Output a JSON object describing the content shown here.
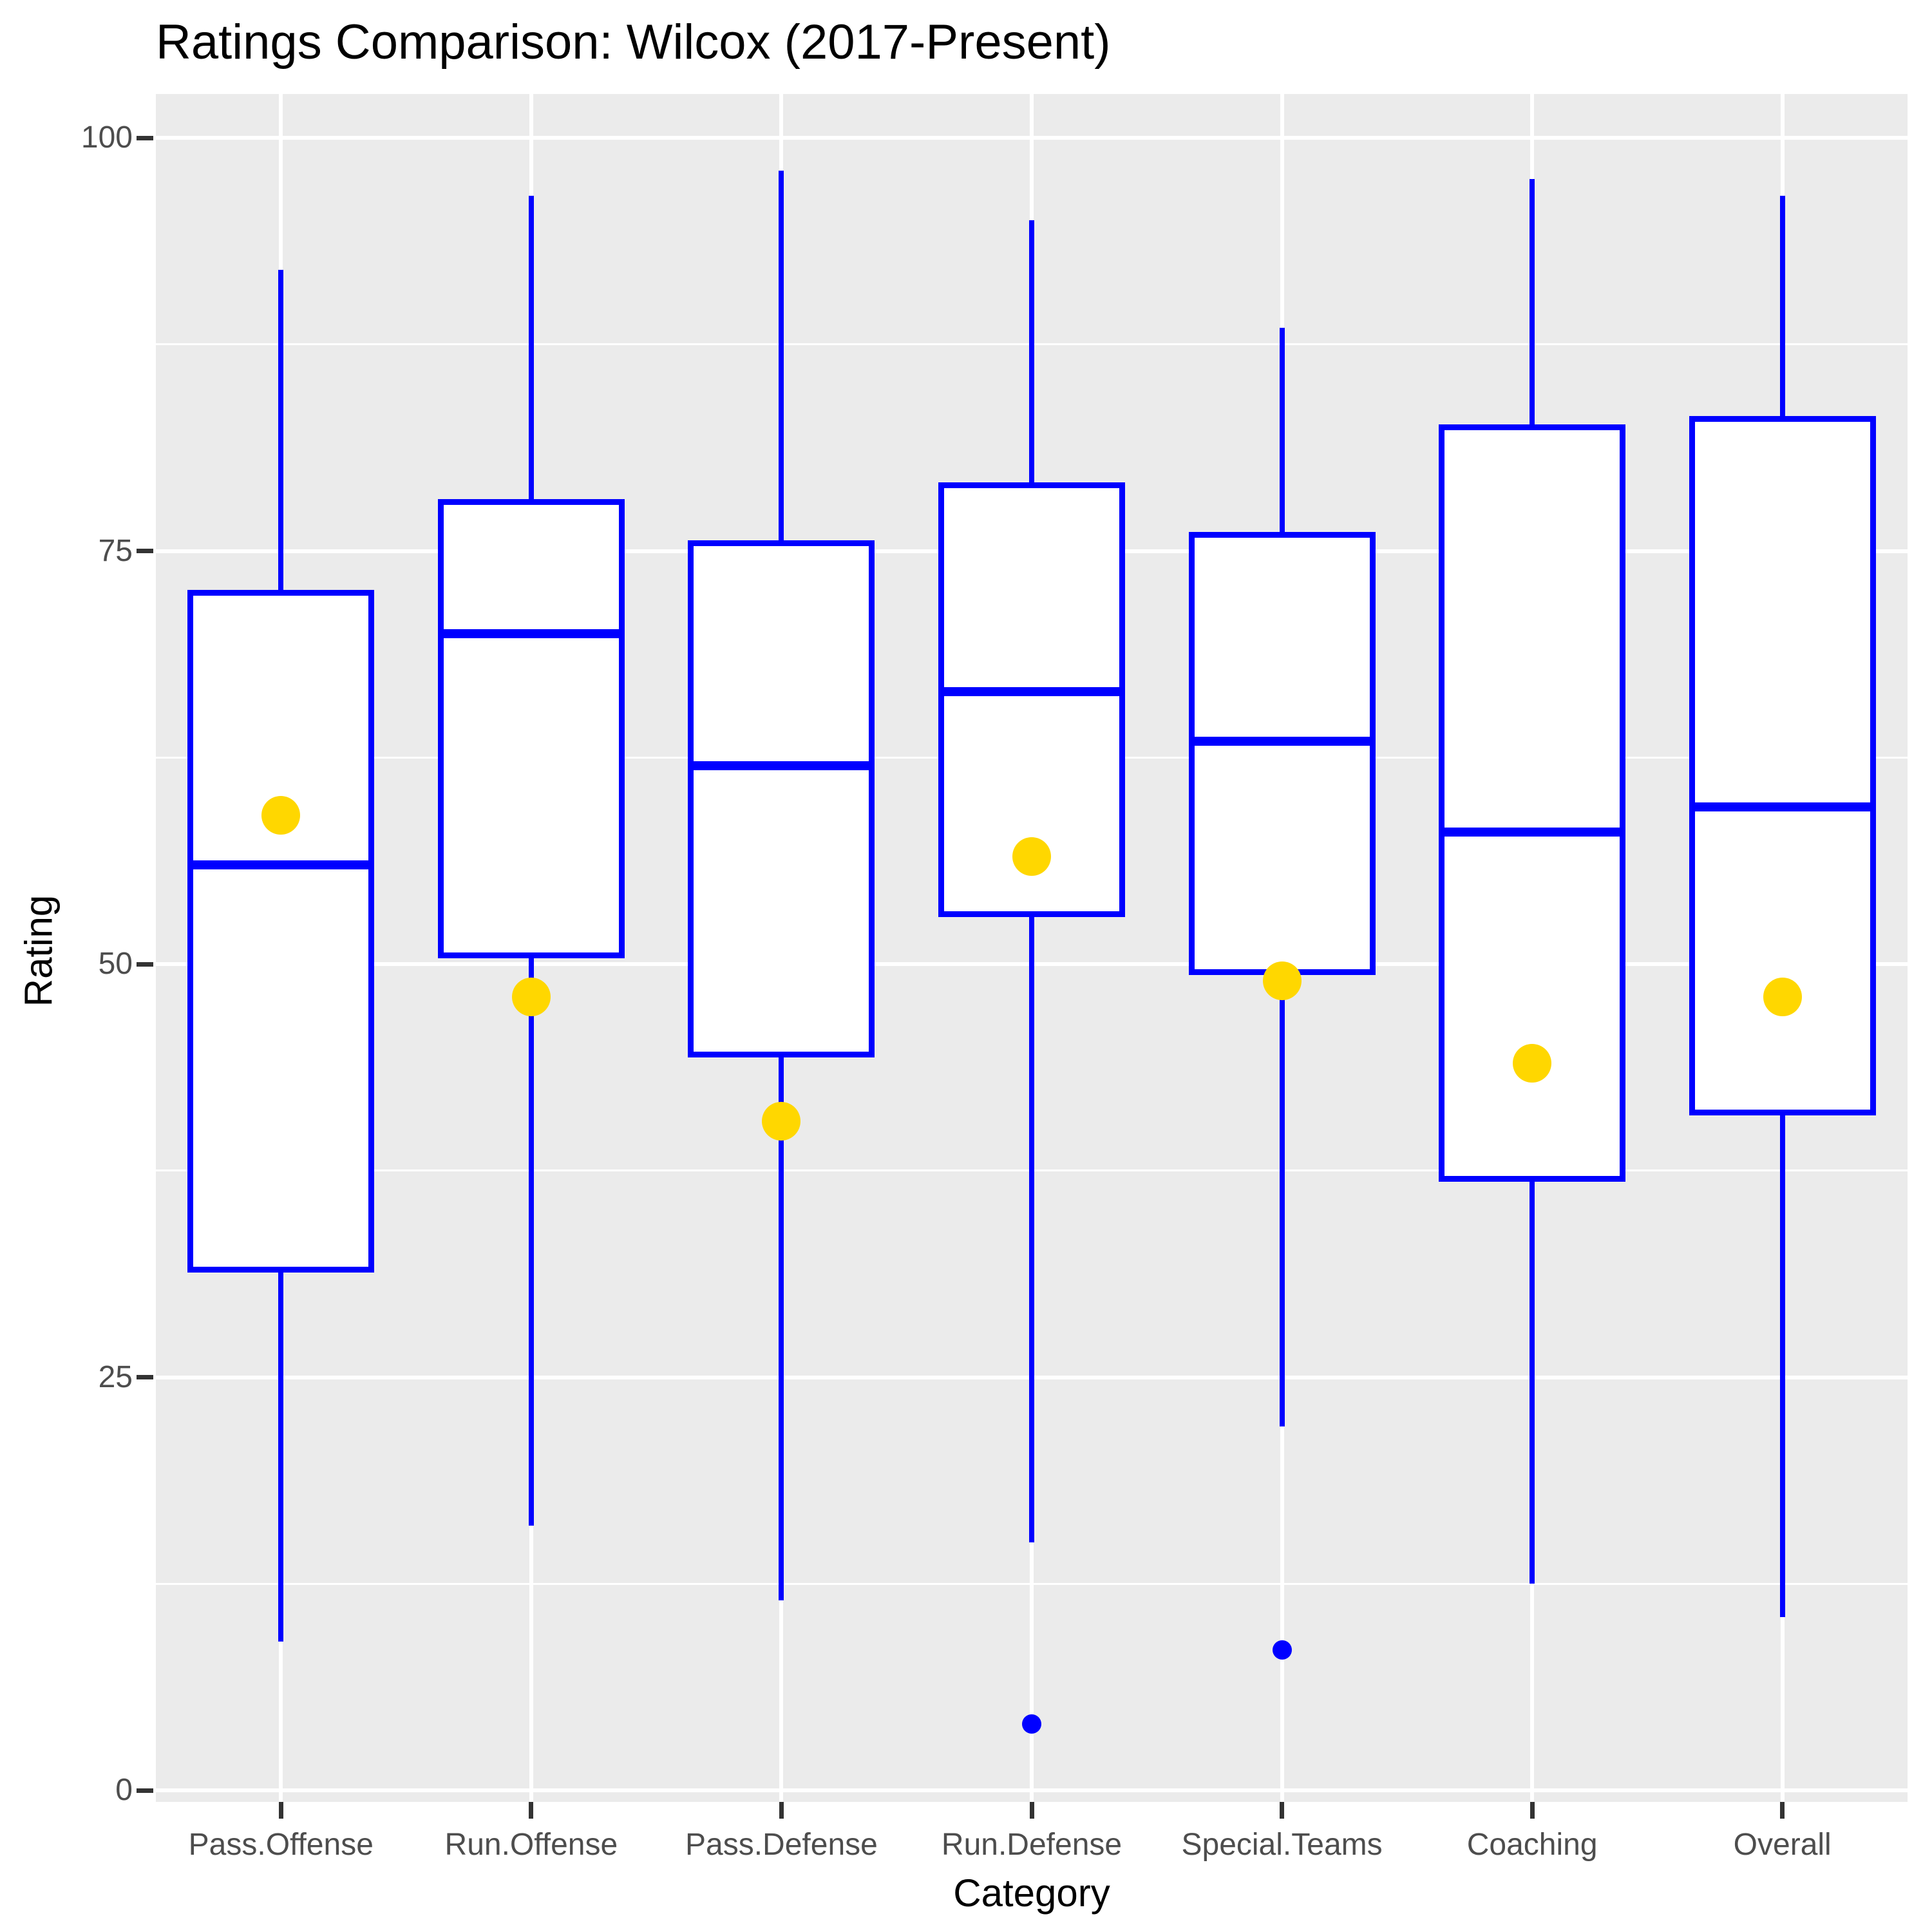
{
  "header": {
    "title": "Ratings Comparison: Wilcox (2017-Present)"
  },
  "chart_data": {
    "type": "boxplot",
    "title": "Ratings Comparison: Wilcox (2017-Present)",
    "xlabel": "Category",
    "ylabel": "Rating",
    "ylim": [
      0,
      100
    ],
    "yticks": [
      0,
      25,
      50,
      75,
      100
    ],
    "ytick_labels": [
      "0",
      "25",
      "50",
      "75",
      "100"
    ],
    "minor_grid_step": 12.5,
    "grid": "on",
    "legend": "none",
    "categories": [
      "Pass.Offense",
      "Run.Offense",
      "Pass.Defense",
      "Run.Defense",
      "Special.Teams",
      "Coaching",
      "Overall"
    ],
    "series": [
      {
        "category": "Pass.Offense",
        "whisker_low": 9,
        "q1": 31.5,
        "median": 56,
        "q3": 72.5,
        "whisker_high": 92,
        "mean": 59,
        "outliers": []
      },
      {
        "category": "Run.Offense",
        "whisker_low": 16,
        "q1": 50.5,
        "median": 70,
        "q3": 78,
        "whisker_high": 96.5,
        "mean": 48,
        "outliers": []
      },
      {
        "category": "Pass.Defense",
        "whisker_low": 11.5,
        "q1": 44.5,
        "median": 62,
        "q3": 75.5,
        "whisker_high": 98,
        "mean": 40.5,
        "outliers": []
      },
      {
        "category": "Run.Defense",
        "whisker_low": 15,
        "q1": 53,
        "median": 66.5,
        "q3": 79,
        "whisker_high": 95,
        "mean": 56.5,
        "outliers": [
          4
        ]
      },
      {
        "category": "Special.Teams",
        "whisker_low": 22,
        "q1": 49.5,
        "median": 63.5,
        "q3": 76,
        "whisker_high": 88.5,
        "mean": 49,
        "outliers": [
          8.5
        ]
      },
      {
        "category": "Coaching",
        "whisker_low": 12.5,
        "q1": 37,
        "median": 58,
        "q3": 82.5,
        "whisker_high": 97.5,
        "mean": 44,
        "outliers": []
      },
      {
        "category": "Overall",
        "whisker_low": 10.5,
        "q1": 41,
        "median": 59.5,
        "q3": 83,
        "whisker_high": 96.5,
        "mean": 48,
        "outliers": []
      }
    ],
    "colors": {
      "box_border": "#0000FF",
      "box_fill": "#FFFFFF",
      "median": "#0000FF",
      "whisker": "#0000FF",
      "mean_point": "#FFD700",
      "outlier_point": "#0000FF",
      "panel_background": "#EBEBEB",
      "gridline": "#FFFFFF",
      "axis_text": "#4D4D4D",
      "tick_mark": "#333333",
      "title_text": "#000000"
    }
  }
}
